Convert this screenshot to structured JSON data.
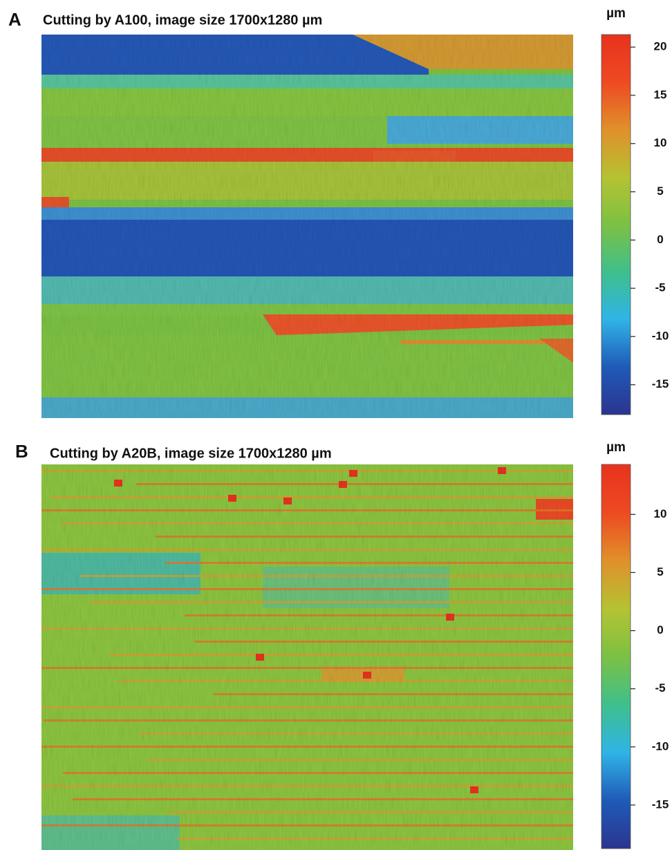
{
  "chart_data": [
    {
      "type": "heatmap",
      "panel_label": "A",
      "title": "Cutting by A100, image size 1700x1280 µm",
      "colorbar_label": "µm",
      "clim": [
        -18.1,
        21.3
      ],
      "cticks": [
        -15,
        -10,
        -5,
        0,
        5,
        10,
        15,
        20
      ],
      "colormap": [
        "#2b3590",
        "#1f5ab8",
        "#2fb4e6",
        "#3fbf8c",
        "#7cc143",
        "#b5c232",
        "#e0902a",
        "#ee4a22",
        "#e8321e"
      ]
    },
    {
      "type": "heatmap",
      "panel_label": "B",
      "title": "Cutting by A20B, image size 1700x1280 µm",
      "colorbar_label": "µm",
      "clim": [
        -18.75,
        14.3
      ],
      "cticks": [
        -15,
        -10,
        -5,
        0,
        5,
        10
      ],
      "colormap": [
        "#2b3590",
        "#1f5ab8",
        "#2fb4e6",
        "#3fbf8c",
        "#7cc143",
        "#b5c232",
        "#e0902a",
        "#ee4a22",
        "#e8321e"
      ]
    }
  ]
}
